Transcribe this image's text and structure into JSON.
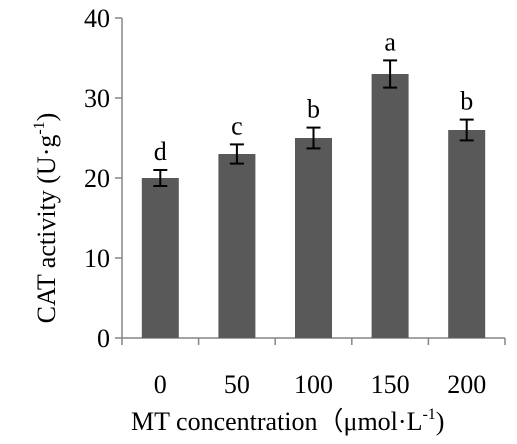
{
  "chart_data": {
    "type": "bar",
    "categories": [
      "0",
      "50",
      "100",
      "150",
      "200"
    ],
    "values": [
      20,
      23,
      25,
      33,
      26
    ],
    "errors": [
      1.0,
      1.2,
      1.3,
      1.7,
      1.3
    ],
    "significance": [
      "d",
      "c",
      "b",
      "a",
      "b"
    ],
    "xlabel": {
      "text": "MT concentration（μmol·L",
      "sup": "-1",
      "tail": ")"
    },
    "ylabel": {
      "text": "CAT activity (U·g",
      "sup": "-1",
      "tail": ")"
    },
    "ylim": [
      0,
      40
    ],
    "yticks": [
      "0",
      "10",
      "20",
      "30",
      "40"
    ],
    "grid": false,
    "legend": "none",
    "colors": {
      "bar": "#595959",
      "axis": "#868686",
      "error_bar": "#000000"
    }
  }
}
